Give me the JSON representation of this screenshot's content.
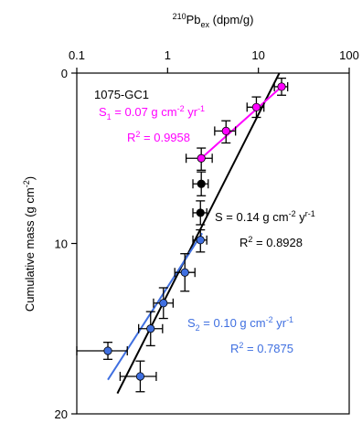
{
  "chart_data": {
    "type": "scatter",
    "core_id": "1075-GC1",
    "xlabel_sup": "210",
    "xlabel_main": "Pb",
    "xlabel_sub": "ex",
    "xlabel_rest": " (dpm/g)",
    "ylabel_main": "Cumulative mass (g cm",
    "ylabel_sup": "-2",
    "ylabel_end": ")",
    "x_scale": "log",
    "xlim": [
      0.1,
      100
    ],
    "ylim": [
      0,
      20
    ],
    "y_inverted": true,
    "x_axis_position": "top",
    "x_ticks": [
      {
        "value": 0.1,
        "label": "0.1"
      },
      {
        "value": 1,
        "label": "1"
      },
      {
        "value": 10,
        "label": "10"
      },
      {
        "value": 100,
        "label": "100"
      }
    ],
    "y_ticks": [
      {
        "value": 0,
        "label": "0"
      },
      {
        "value": 10,
        "label": "10"
      },
      {
        "value": 20,
        "label": "20"
      }
    ],
    "grid": false,
    "points": [
      {
        "x": 18.0,
        "y": 0.8,
        "xerr": [
          15.0,
          21.0
        ],
        "yerr": [
          0.3,
          1.3
        ],
        "color": "#ff00ff",
        "group": "upper"
      },
      {
        "x": 9.5,
        "y": 2.0,
        "xerr": [
          7.5,
          11.5
        ],
        "yerr": [
          1.4,
          2.6
        ],
        "color": "#ff00ff",
        "group": "upper"
      },
      {
        "x": 4.4,
        "y": 3.4,
        "xerr": [
          3.3,
          5.6
        ],
        "yerr": [
          2.8,
          4.1
        ],
        "color": "#ff00ff",
        "group": "upper"
      },
      {
        "x": 2.35,
        "y": 5.0,
        "xerr": [
          1.6,
          3.1
        ],
        "yerr": [
          4.4,
          5.7
        ],
        "color": "#ff00ff",
        "group": "upper"
      },
      {
        "x": 2.35,
        "y": 6.5,
        "xerr": [
          1.9,
          2.8
        ],
        "yerr": [
          5.8,
          7.2
        ],
        "color": "#000000",
        "group": "middle"
      },
      {
        "x": 2.3,
        "y": 8.2,
        "xerr": [
          1.9,
          2.7
        ],
        "yerr": [
          7.5,
          8.9
        ],
        "color": "#000000",
        "group": "middle"
      },
      {
        "x": 2.3,
        "y": 9.8,
        "xerr": [
          1.9,
          2.7
        ],
        "yerr": [
          9.2,
          10.5
        ],
        "color": "#3f6fe0",
        "group": "lower"
      },
      {
        "x": 1.55,
        "y": 11.7,
        "xerr": [
          1.2,
          2.0
        ],
        "yerr": [
          10.6,
          12.8
        ],
        "color": "#3f6fe0",
        "group": "lower"
      },
      {
        "x": 0.9,
        "y": 13.5,
        "xerr": [
          0.7,
          1.15
        ],
        "yerr": [
          12.6,
          14.4
        ],
        "color": "#3f6fe0",
        "group": "lower"
      },
      {
        "x": 0.65,
        "y": 15.0,
        "xerr": [
          0.48,
          0.88
        ],
        "yerr": [
          14.0,
          16.0
        ],
        "color": "#3f6fe0",
        "group": "lower"
      },
      {
        "x": 0.22,
        "y": 16.3,
        "xerr": [
          0.1,
          0.36
        ],
        "yerr": [
          15.8,
          16.8
        ],
        "color": "#3f6fe0",
        "group": "lower"
      },
      {
        "x": 0.5,
        "y": 17.8,
        "xerr": [
          0.3,
          0.75
        ],
        "yerr": [
          16.9,
          18.7
        ],
        "color": "#3f6fe0",
        "group": "lower"
      }
    ],
    "fits": [
      {
        "label_main": "S = 0.14 g cm",
        "label_sup1": "-2",
        "label_mid": " y",
        "label_sup2": "r-1",
        "r2_prefix": "R",
        "r2_sup": "2",
        "r2_value": " = 0.8928",
        "color": "#000000",
        "x": [
          0.28,
          17.0
        ],
        "y": [
          18.8,
          0.0
        ]
      },
      {
        "label_main_s": "S",
        "label_sub": "1",
        "label_main": " = 0.07 g cm",
        "label_sup1": "-2",
        "label_mid": " yr",
        "label_sup2": "-1",
        "r2_prefix": "R",
        "r2_sup": "2",
        "r2_value": " = 0.9958",
        "color": "#ff00ff",
        "x": [
          2.35,
          18.0
        ],
        "y": [
          5.0,
          0.8
        ]
      },
      {
        "label_main_s": "S",
        "label_sub": "2",
        "label_main": " = 0.10 g cm",
        "label_sup1": "-2",
        "label_mid": " yr",
        "label_sup2": "-1",
        "r2_prefix": "R",
        "r2_sup": "2",
        "r2_value": " = 0.7875",
        "color": "#3f6fe0",
        "x": [
          0.22,
          2.4
        ],
        "y": [
          18.0,
          9.4
        ]
      }
    ]
  }
}
